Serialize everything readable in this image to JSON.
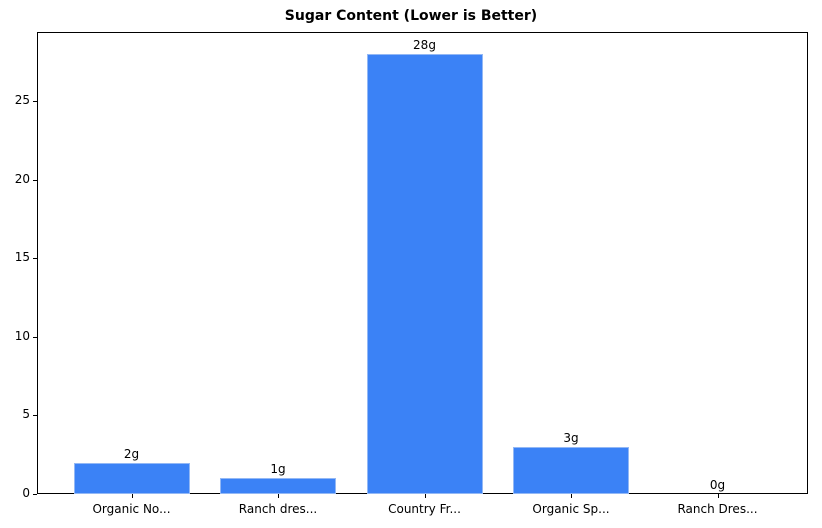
{
  "chart_data": {
    "type": "bar",
    "title": "Sugar Content (Lower is Better)",
    "xlabel": "",
    "ylabel": "",
    "categories": [
      "Organic No...",
      "Ranch dres...",
      "Country Fr...",
      "Organic Sp...",
      "Ranch Dres..."
    ],
    "values": [
      2,
      1,
      28,
      3,
      0
    ],
    "data_labels": [
      "2g",
      "1g",
      "28g",
      "3g",
      "0g"
    ],
    "yticks": [
      0,
      5,
      10,
      15,
      20,
      25
    ],
    "ylim": [
      0,
      29.4
    ],
    "grid": false,
    "legend": null,
    "bar_color": "#3b82f6"
  }
}
